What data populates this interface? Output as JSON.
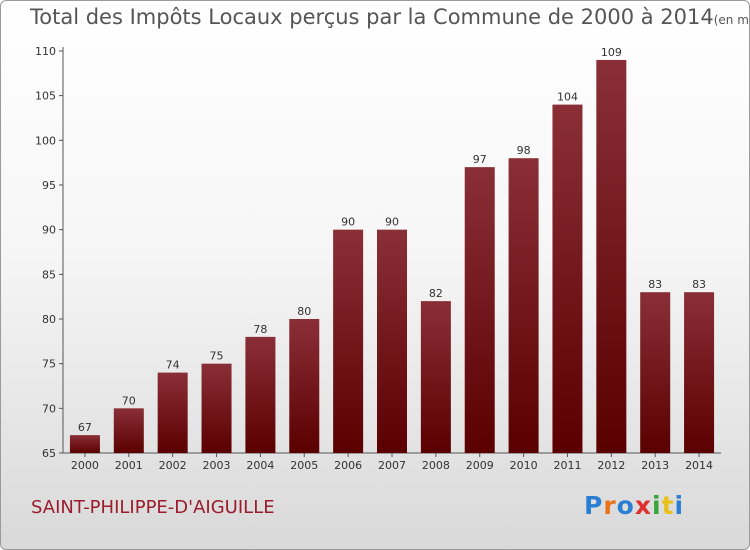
{
  "title": "Total des Impôts Locaux perçus par la Commune de 2000 à 2014",
  "unit_note": "(en milliers d'€)",
  "commune": "SAINT-PHILIPPE-D'AIGUILLE",
  "logo": "Proxiti",
  "colors": {
    "bar_top": "#8a2f37",
    "bar_bottom": "#5a0000",
    "commune_text": "#9b1c2c"
  },
  "chart_data": {
    "type": "bar",
    "categories": [
      "2000",
      "2001",
      "2002",
      "2003",
      "2004",
      "2005",
      "2006",
      "2007",
      "2008",
      "2009",
      "2010",
      "2011",
      "2012",
      "2013",
      "2014"
    ],
    "values": [
      67,
      70,
      74,
      75,
      78,
      80,
      90,
      90,
      82,
      97,
      98,
      104,
      109,
      83,
      83
    ],
    "ylim": [
      65,
      110
    ],
    "yticks": [
      65,
      70,
      75,
      80,
      85,
      90,
      95,
      100,
      105,
      110
    ],
    "grid": false,
    "data_labels": true
  }
}
